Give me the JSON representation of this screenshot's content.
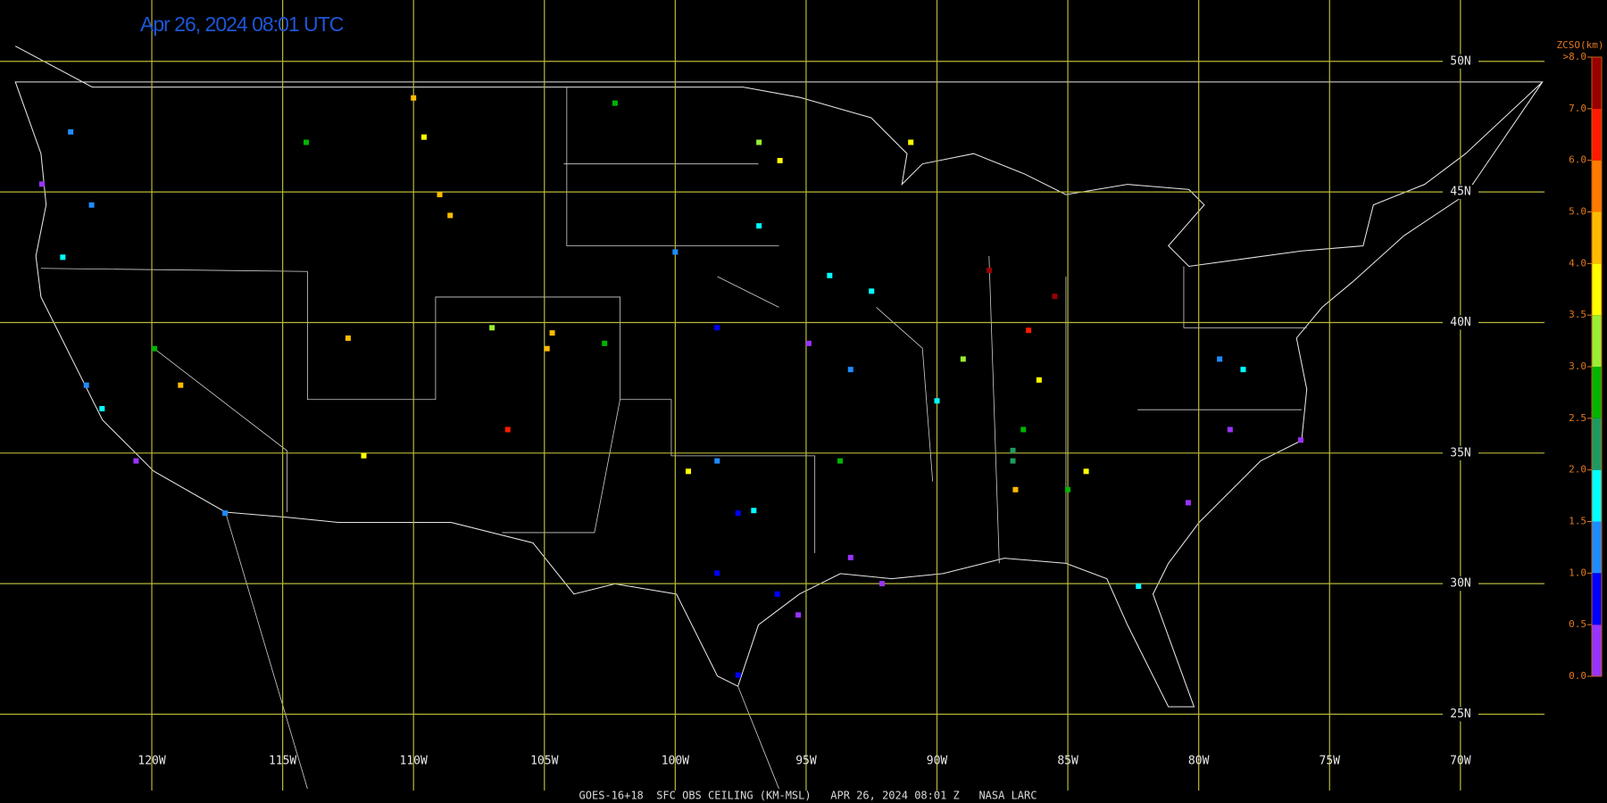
{
  "title": "Apr 26, 2024 08:01 UTC",
  "caption": "GOES-16+18  SFC OBS CEILING (KM-MSL)   APR 26, 2024 08:01 Z   NASA LARC",
  "map": {
    "lon_range": [
      -125.8,
      -64.4
    ],
    "lat_range": [
      21.6,
      52.35
    ],
    "grid_color": "#b8b83a",
    "lon_ticks": [
      {
        "value": -120,
        "label": "120W"
      },
      {
        "value": -115,
        "label": "115W"
      },
      {
        "value": -110,
        "label": "110W"
      },
      {
        "value": -105,
        "label": "105W"
      },
      {
        "value": -100,
        "label": "100W"
      },
      {
        "value": -95,
        "label": "95W"
      },
      {
        "value": -90,
        "label": "90W"
      },
      {
        "value": -85,
        "label": "85W"
      },
      {
        "value": -80,
        "label": "80W"
      },
      {
        "value": -75,
        "label": "75W"
      },
      {
        "value": -70,
        "label": "70W"
      }
    ],
    "lat_ticks": [
      {
        "value": 50,
        "label": "50N"
      },
      {
        "value": 45,
        "label": "45N"
      },
      {
        "value": 40,
        "label": "40N"
      },
      {
        "value": 35,
        "label": "35N"
      },
      {
        "value": 30,
        "label": "30N"
      },
      {
        "value": 25,
        "label": "25N"
      }
    ]
  },
  "colorbar": {
    "title": "ZCSO(km)",
    "ticks": [
      {
        "value": 0,
        "label": "0.0"
      },
      {
        "value": 0.5,
        "label": "0.5"
      },
      {
        "value": 1,
        "label": "1.0"
      },
      {
        "value": 1.5,
        "label": "1.5"
      },
      {
        "value": 2,
        "label": "2.0"
      },
      {
        "value": 2.5,
        "label": "2.5"
      },
      {
        "value": 3,
        "label": "3.0"
      },
      {
        "value": 3.5,
        "label": "3.5"
      },
      {
        "value": 4,
        "label": "4.0"
      },
      {
        "value": 5,
        "label": "5.0"
      },
      {
        "value": 6,
        "label": "6.0"
      },
      {
        "value": 7,
        "label": "7.0"
      },
      {
        "value": 8,
        "label": ">8.0"
      }
    ],
    "colors": [
      "#9933ff",
      "#0000ff",
      "#1e8cff",
      "#00ffff",
      "#1e9a60",
      "#00b400",
      "#99ee33",
      "#ffff00",
      "#ffbb00",
      "#ff7a00",
      "#ff1a00",
      "#990000"
    ]
  },
  "stations": [
    {
      "lon": -97.6,
      "lat": 32.7,
      "ceiling_km": 0.8
    },
    {
      "lon": -97.0,
      "lat": 32.8,
      "ceiling_km": 1.7
    },
    {
      "lon": -98.4,
      "lat": 30.4,
      "ceiling_km": 0.7
    },
    {
      "lon": -96.1,
      "lat": 29.6,
      "ceiling_km": 0.6
    },
    {
      "lon": -97.6,
      "lat": 26.5,
      "ceiling_km": 0.7
    },
    {
      "lon": -95.3,
      "lat": 28.8,
      "ceiling_km": 0.3
    },
    {
      "lon": -93.3,
      "lat": 31.0,
      "ceiling_km": 0.3
    },
    {
      "lon": -92.1,
      "lat": 30.0,
      "ceiling_km": 0.3
    },
    {
      "lon": -78.8,
      "lat": 35.9,
      "ceiling_km": 0.3
    },
    {
      "lon": -80.4,
      "lat": 33.1,
      "ceiling_km": 0.4
    },
    {
      "lon": -76.1,
      "lat": 35.5,
      "ceiling_km": 0.3
    },
    {
      "lon": -86.7,
      "lat": 35.9,
      "ceiling_km": 2.6
    },
    {
      "lon": -87.1,
      "lat": 35.1,
      "ceiling_km": 2.2
    },
    {
      "lon": -84.3,
      "lat": 34.3,
      "ceiling_km": 3.7
    },
    {
      "lon": -86.1,
      "lat": 37.8,
      "ceiling_km": 3.8
    },
    {
      "lon": -104.9,
      "lat": 39.0,
      "ceiling_km": 4.5
    },
    {
      "lon": -104.7,
      "lat": 39.6,
      "ceiling_km": 4.5
    },
    {
      "lon": -107.0,
      "lat": 39.8,
      "ceiling_km": 3.2
    },
    {
      "lon": -106.4,
      "lat": 35.9,
      "ceiling_km": 6.5
    },
    {
      "lon": -88.0,
      "lat": 42.0,
      "ceiling_km": 7.5
    },
    {
      "lon": -85.5,
      "lat": 41.0,
      "ceiling_km": 7.5
    },
    {
      "lon": -86.5,
      "lat": 39.7,
      "ceiling_km": 6.5
    },
    {
      "lon": -109.0,
      "lat": 44.9,
      "ceiling_km": 4.5
    },
    {
      "lon": -108.6,
      "lat": 44.1,
      "ceiling_km": 4.5
    },
    {
      "lon": -114.1,
      "lat": 46.9,
      "ceiling_km": 2.8
    },
    {
      "lon": -123.1,
      "lat": 47.3,
      "ceiling_km": 1.2
    },
    {
      "lon": -123.4,
      "lat": 42.5,
      "ceiling_km": 1.8
    },
    {
      "lon": -124.2,
      "lat": 45.3,
      "ceiling_km": 0.3
    },
    {
      "lon": -121.9,
      "lat": 36.7,
      "ceiling_km": 1.8
    },
    {
      "lon": -122.5,
      "lat": 37.6,
      "ceiling_km": 1.2
    },
    {
      "lon": -120.6,
      "lat": 34.7,
      "ceiling_km": 0.3
    },
    {
      "lon": -117.2,
      "lat": 32.7,
      "ceiling_km": 1.3
    },
    {
      "lon": -119.9,
      "lat": 39.0,
      "ceiling_km": 2.8
    },
    {
      "lon": -118.9,
      "lat": 37.6,
      "ceiling_km": 4.5
    },
    {
      "lon": -112.5,
      "lat": 39.4,
      "ceiling_km": 4.5
    },
    {
      "lon": -111.9,
      "lat": 34.9,
      "ceiling_km": 3.7
    },
    {
      "lon": -100.0,
      "lat": 42.7,
      "ceiling_km": 1.1
    },
    {
      "lon": -98.4,
      "lat": 39.8,
      "ceiling_km": 0.8
    },
    {
      "lon": -102.3,
      "lat": 48.4,
      "ceiling_km": 2.8
    },
    {
      "lon": -96.8,
      "lat": 46.9,
      "ceiling_km": 3.2
    },
    {
      "lon": -96.0,
      "lat": 46.2,
      "ceiling_km": 3.7
    },
    {
      "lon": -96.8,
      "lat": 43.7,
      "ceiling_km": 1.6
    },
    {
      "lon": -91.0,
      "lat": 46.9,
      "ceiling_km": 3.7
    },
    {
      "lon": -94.1,
      "lat": 41.8,
      "ceiling_km": 1.8
    },
    {
      "lon": -92.5,
      "lat": 41.2,
      "ceiling_km": 1.8
    },
    {
      "lon": -93.3,
      "lat": 38.2,
      "ceiling_km": 1.2
    },
    {
      "lon": -94.9,
      "lat": 39.2,
      "ceiling_km": 0.3
    },
    {
      "lon": -89.0,
      "lat": 38.6,
      "ceiling_km": 3.2
    },
    {
      "lon": -90.0,
      "lat": 37.0,
      "ceiling_km": 1.8
    },
    {
      "lon": -93.7,
      "lat": 34.7,
      "ceiling_km": 2.8
    },
    {
      "lon": -98.4,
      "lat": 34.7,
      "ceiling_km": 1.0
    },
    {
      "lon": -99.5,
      "lat": 34.3,
      "ceiling_km": 3.7
    },
    {
      "lon": -82.3,
      "lat": 29.9,
      "ceiling_km": 1.8
    },
    {
      "lon": -87.1,
      "lat": 34.7,
      "ceiling_km": 2.2
    },
    {
      "lon": -87.0,
      "lat": 33.6,
      "ceiling_km": 4.5
    },
    {
      "lon": -78.3,
      "lat": 38.2,
      "ceiling_km": 1.8
    },
    {
      "lon": -79.2,
      "lat": 38.6,
      "ceiling_km": 1.2
    },
    {
      "lon": -85.0,
      "lat": 33.6,
      "ceiling_km": 2.6
    },
    {
      "lon": -122.3,
      "lat": 44.5,
      "ceiling_km": 1.2
    },
    {
      "lon": -109.6,
      "lat": 47.1,
      "ceiling_km": 3.7
    },
    {
      "lon": -110.0,
      "lat": 48.6,
      "ceiling_km": 4.5
    },
    {
      "lon": -102.7,
      "lat": 39.2,
      "ceiling_km": 2.8
    }
  ]
}
